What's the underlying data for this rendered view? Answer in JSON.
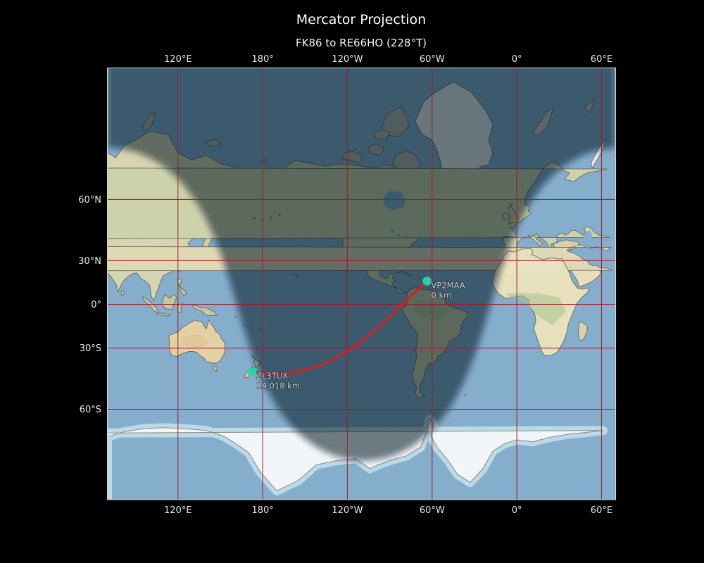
{
  "figure": {
    "title": "Mercator Projection",
    "subtitle": "FK86 to RE66HO (228°T)"
  },
  "map": {
    "projection": "Mercator",
    "central_longitude": -110,
    "graticule_lon_step_deg": 60,
    "graticule_lat_step_deg": 30,
    "night_shading": true
  },
  "axes": {
    "longitude_ticks": [
      {
        "label": "120°E",
        "lon": 120
      },
      {
        "label": "180°",
        "lon": 180
      },
      {
        "label": "120°W",
        "lon": -120
      },
      {
        "label": "60°W",
        "lon": -60
      },
      {
        "label": "0°",
        "lon": 0
      },
      {
        "label": "60°E",
        "lon": 60
      }
    ],
    "latitude_ticks": [
      {
        "label": "60°N",
        "lat": 60
      },
      {
        "label": "30°N",
        "lat": 30
      },
      {
        "label": "0°",
        "lat": 0
      },
      {
        "label": "30°S",
        "lat": -30
      },
      {
        "label": "60°S",
        "lat": -60
      }
    ]
  },
  "stations": [
    {
      "callsign": "VP2MAA",
      "grid": "FK86",
      "distance": "0 km",
      "lat": 16.5,
      "lon": -63.6
    },
    {
      "callsign": "ZL3TUX",
      "grid": "RE66HO",
      "distance": "14,018 km",
      "lat": -43.4,
      "lon": 172.6
    }
  ],
  "path": {
    "from_grid": "FK86",
    "to_grid": "RE66HO",
    "bearing_true": "228°T",
    "distance": "14,018 km"
  },
  "colors": {
    "background": "#000000",
    "ocean": "#85aecd",
    "polar_sea_ice": "#bcd9e8",
    "grid_red": "#a81622",
    "path_red": "#d62020",
    "marker_teal": "#27d3a4",
    "night": "rgba(7,17,35,0.55)",
    "frame": "#d6d6d6",
    "coast": "#5f5f56"
  }
}
